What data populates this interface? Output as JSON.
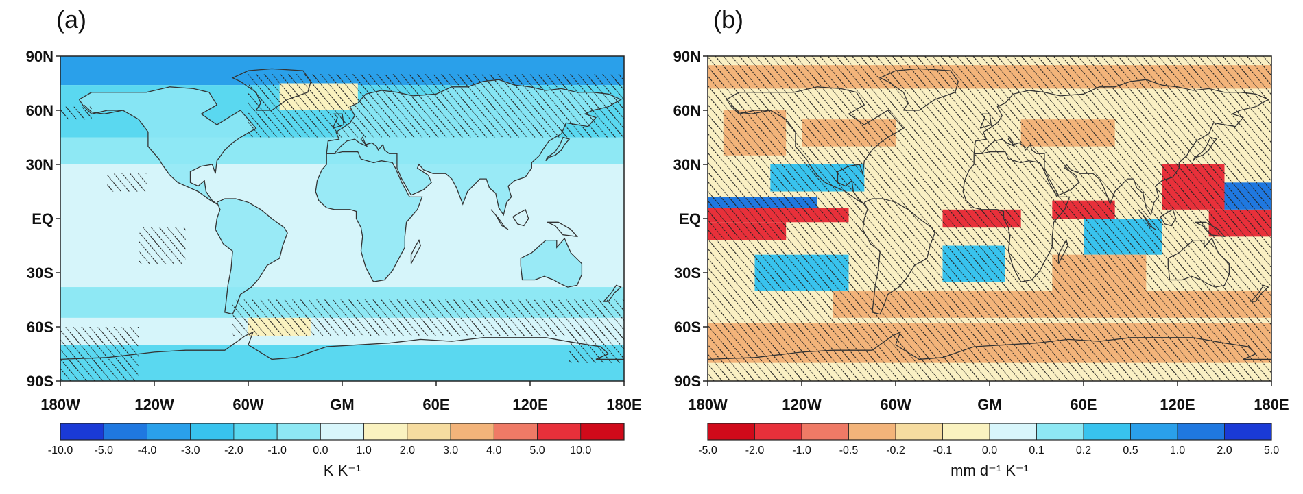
{
  "panels": [
    {
      "label": "(a)",
      "lat_labels": [
        "90N",
        "60N",
        "30N",
        "EQ",
        "30S",
        "60S",
        "90S"
      ],
      "lon_labels": [
        "180W",
        "120W",
        "60W",
        "GM",
        "60E",
        "120E",
        "180E"
      ],
      "colorbar": {
        "colors": [
          "#1a3ad6",
          "#1f78e0",
          "#2aa0ea",
          "#38c3ee",
          "#5ad8f0",
          "#8ee8f4",
          "#d8f6fb",
          "#faf2c0",
          "#f6dca0",
          "#f3b47a",
          "#ef7a66",
          "#e8303a",
          "#d00a1a"
        ],
        "tick_labels": [
          "-10.0",
          "-5.0",
          "-4.0",
          "-3.0",
          "-2.0",
          "-1.0",
          "0.0",
          "1.0",
          "2.0",
          "3.0",
          "4.0",
          "5.0",
          "10.0"
        ],
        "unit": "K K⁻¹"
      },
      "background": "#d6f5fa",
      "colors": {
        "polar": "#2aa0ea",
        "high_lat": "#5ad8f0",
        "mid": "#8ee8f4",
        "tropics": "#d6f5fa",
        "land": "#8ee8f4",
        "warm": "#faf2c0"
      }
    },
    {
      "label": "(b)",
      "lat_labels": [
        "90N",
        "60N",
        "30N",
        "EQ",
        "30S",
        "60S",
        "90S"
      ],
      "lon_labels": [
        "180W",
        "120W",
        "60W",
        "GM",
        "60E",
        "120E",
        "180E"
      ],
      "colorbar": {
        "colors": [
          "#d00a1a",
          "#e8303a",
          "#ef7a66",
          "#f3b47a",
          "#f6dca0",
          "#faf2c0",
          "#d8f6fb",
          "#8ee8f4",
          "#38c3ee",
          "#2aa0ea",
          "#1f78e0",
          "#1a3ad6"
        ],
        "tick_labels": [
          "-5.0",
          "-2.0",
          "-1.0",
          "-0.5",
          "-0.2",
          "-0.1",
          "0.0",
          "0.1",
          "0.2",
          "0.5",
          "1.0",
          "2.0",
          "5.0"
        ],
        "unit": "mm d⁻¹ K⁻¹"
      },
      "background": "#faf0c4",
      "colors": {
        "wet": "#e8303a",
        "dry": "#1f78e0",
        "light_blue": "#38c3ee",
        "orange": "#f3b47a",
        "tan": "#faf0c4"
      }
    }
  ]
}
